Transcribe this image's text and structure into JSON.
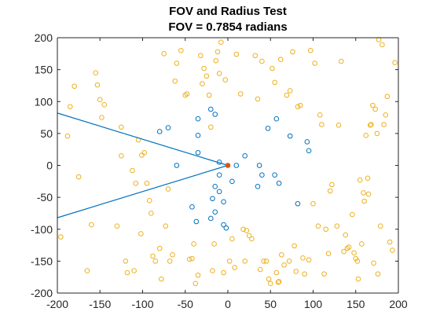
{
  "chart_data": {
    "type": "scatter",
    "title_lines": [
      "FOV and Radius Test",
      "FOV = 0.7854 radians"
    ],
    "xlim": [
      -200,
      200
    ],
    "ylim": [
      -200,
      200
    ],
    "x_ticks": [
      "-200",
      "-150",
      "-100",
      "-50",
      "0",
      "50",
      "100",
      "150",
      "200"
    ],
    "y_ticks": [
      "200",
      "150",
      "100",
      "50",
      "0",
      "-50",
      "-100",
      "-150",
      "-200"
    ],
    "grid": false,
    "fov_lines": {
      "color": "#0072BD",
      "origin": [
        0,
        0
      ],
      "endpoints": [
        [
          -200,
          82
        ],
        [
          -200,
          -82
        ]
      ]
    },
    "origin_point": {
      "x": 0,
      "y": 0,
      "color": "#D95319"
    },
    "series": [
      {
        "role": "inside-fov",
        "color": "#0072BD",
        "points": [
          [
            -80,
            53
          ],
          [
            -70,
            59
          ],
          [
            -60,
            0
          ],
          [
            -35,
            73
          ],
          [
            -35,
            47
          ],
          [
            -35,
            20
          ],
          [
            -20,
            88
          ],
          [
            -15,
            80
          ],
          [
            -10,
            5
          ],
          [
            10,
            0
          ],
          [
            20,
            15
          ],
          [
            37,
            0
          ],
          [
            35,
            -33
          ],
          [
            40,
            -15
          ],
          [
            -42,
            -65
          ],
          [
            -37,
            -88
          ],
          [
            -18,
            -52
          ],
          [
            -15,
            -73
          ],
          [
            -20,
            -83
          ],
          [
            -5,
            -93
          ],
          [
            -2,
            -98
          ],
          [
            -15,
            -33
          ],
          [
            -10,
            -15
          ],
          [
            -10,
            -41
          ],
          [
            -5,
            -57
          ],
          [
            5,
            -25
          ],
          [
            47,
            58
          ],
          [
            57,
            73
          ],
          [
            55,
            -15
          ],
          [
            60,
            -28
          ],
          [
            73,
            46
          ],
          [
            93,
            37
          ],
          [
            95,
            23
          ],
          [
            82,
            -60
          ]
        ]
      },
      {
        "role": "outside-fov",
        "color": "#EDB120",
        "points": [
          [
            -196,
            -112
          ],
          [
            -188,
            46
          ],
          [
            -185,
            92
          ],
          [
            -180,
            124
          ],
          [
            -175,
            -18
          ],
          [
            -165,
            -165
          ],
          [
            -160,
            -93
          ],
          [
            -155,
            145
          ],
          [
            -153,
            126
          ],
          [
            -150,
            103
          ],
          [
            -148,
            75
          ],
          [
            -145,
            95
          ],
          [
            -130,
            -95
          ],
          [
            -125,
            60
          ],
          [
            -125,
            15
          ],
          [
            -120,
            -150
          ],
          [
            -118,
            -168
          ],
          [
            -110,
            -165
          ],
          [
            -112,
            -8
          ],
          [
            -108,
            -28
          ],
          [
            -105,
            40
          ],
          [
            -102,
            -107
          ],
          [
            -101,
            16
          ],
          [
            -98,
            20
          ],
          [
            -95,
            -28
          ],
          [
            -92,
            -55
          ],
          [
            -90,
            -75
          ],
          [
            -88,
            -142
          ],
          [
            -85,
            -150
          ],
          [
            -80,
            -130
          ],
          [
            -78,
            -178
          ],
          [
            -75,
            175
          ],
          [
            -73,
            -95
          ],
          [
            -70,
            -37
          ],
          [
            -68,
            -150
          ],
          [
            -65,
            -140
          ],
          [
            -62,
            132
          ],
          [
            -60,
            160
          ],
          [
            -55,
            180
          ],
          [
            -50,
            110
          ],
          [
            -48,
            112
          ],
          [
            -45,
            -147
          ],
          [
            -42,
            -146
          ],
          [
            -40,
            -123
          ],
          [
            -38,
            -185
          ],
          [
            -35,
            -172
          ],
          [
            -32,
            172
          ],
          [
            -30,
            128
          ],
          [
            -28,
            152
          ],
          [
            -25,
            140
          ],
          [
            -22,
            110
          ],
          [
            -20,
            60
          ],
          [
            -18,
            -165
          ],
          [
            -16,
            -123
          ],
          [
            -14,
            164
          ],
          [
            -12,
            178
          ],
          [
            -10,
            144
          ],
          [
            -8,
            193
          ],
          [
            -5,
            -168
          ],
          [
            -3,
            134
          ],
          [
            2,
            -150
          ],
          [
            5,
            -115
          ],
          [
            8,
            -160
          ],
          [
            10,
            174
          ],
          [
            15,
            112
          ],
          [
            18,
            -100
          ],
          [
            20,
            -150
          ],
          [
            22,
            -102
          ],
          [
            25,
            -110
          ],
          [
            28,
            -115
          ],
          [
            32,
            172
          ],
          [
            35,
            104
          ],
          [
            38,
            -163
          ],
          [
            40,
            163
          ],
          [
            42,
            -150
          ],
          [
            45,
            -150
          ],
          [
            48,
            -178
          ],
          [
            50,
            -185
          ],
          [
            52,
            152
          ],
          [
            55,
            130
          ],
          [
            57,
            -168
          ],
          [
            59,
            -183
          ],
          [
            60,
            -182
          ],
          [
            62,
            166
          ],
          [
            63,
            -140
          ],
          [
            66,
            -156
          ],
          [
            69,
            110
          ],
          [
            72,
            -150
          ],
          [
            73,
            117
          ],
          [
            76,
            178
          ],
          [
            78,
            -126
          ],
          [
            80,
            -166
          ],
          [
            82,
            92
          ],
          [
            85,
            94
          ],
          [
            88,
            -145
          ],
          [
            90,
            -170
          ],
          [
            95,
            -148
          ],
          [
            97,
            180
          ],
          [
            100,
            -60
          ],
          [
            102,
            160
          ],
          [
            106,
            -95
          ],
          [
            108,
            79
          ],
          [
            110,
            64
          ],
          [
            113,
            -170
          ],
          [
            115,
            -100
          ],
          [
            118,
            -138
          ],
          [
            120,
            -40
          ],
          [
            122,
            -30
          ],
          [
            128,
            -95
          ],
          [
            130,
            63
          ],
          [
            133,
            163
          ],
          [
            136,
            -135
          ],
          [
            138,
            -109
          ],
          [
            140,
            -130
          ],
          [
            142,
            -128
          ],
          [
            146,
            -77
          ],
          [
            148,
            -137
          ],
          [
            150,
            -146
          ],
          [
            152,
            -150
          ],
          [
            153,
            -178
          ],
          [
            155,
            -23
          ],
          [
            157,
            -123
          ],
          [
            159,
            -43
          ],
          [
            160,
            -56
          ],
          [
            162,
            47
          ],
          [
            164,
            -20
          ],
          [
            165,
            -45
          ],
          [
            167,
            63
          ],
          [
            168,
            64
          ],
          [
            170,
            94
          ],
          [
            171,
            -153
          ],
          [
            173,
            88
          ],
          [
            175,
            50
          ],
          [
            176,
            -170
          ],
          [
            177,
            197
          ],
          [
            179,
            -95
          ],
          [
            181,
            189
          ],
          [
            183,
            64
          ],
          [
            185,
            79
          ],
          [
            187,
            108
          ],
          [
            190,
            -120
          ],
          [
            193,
            -133
          ],
          [
            196,
            161
          ]
        ]
      }
    ]
  }
}
